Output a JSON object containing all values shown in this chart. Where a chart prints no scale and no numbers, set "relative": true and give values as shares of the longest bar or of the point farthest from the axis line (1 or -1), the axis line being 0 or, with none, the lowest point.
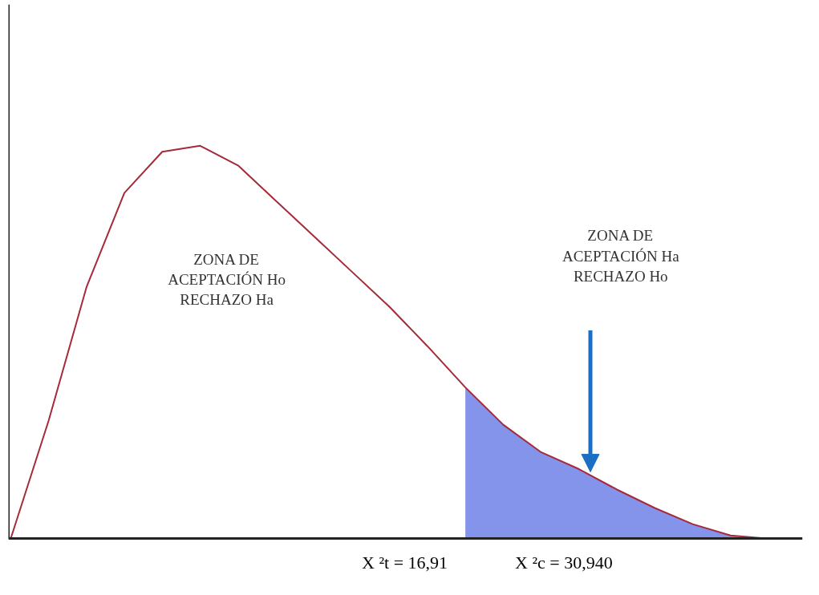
{
  "chart_data": {
    "type": "line",
    "relative": true,
    "categories": [
      null,
      null,
      null,
      null,
      null,
      null,
      null,
      null,
      null,
      null,
      null,
      null,
      null,
      null,
      null,
      null,
      null,
      null,
      null,
      null,
      null
    ],
    "series": [
      {
        "type": "area",
        "color": "#8494ea",
        "values": [
          null,
          null,
          null,
          null,
          null,
          null,
          null,
          null,
          null,
          null,
          null,
          null,
          0.385,
          0.29,
          0.22,
          0.177,
          0.125,
          0.078,
          0.037,
          0.008,
          0
        ]
      },
      {
        "color": "#a52a3a",
        "values": [
          0,
          0.3,
          0.64,
          0.88,
          0.985,
          1.0,
          0.95,
          0.86,
          0.77,
          0.68,
          0.59,
          0.49,
          0.385,
          0.29,
          0.22,
          0.177,
          0.125,
          0.078,
          0.037,
          0.008,
          0
        ]
      }
    ],
    "annotations": [
      "ZONA DE\nACEPTACIÓN Ho\nRECHAZO Ha",
      "ZONA DE\nACEPTACIÓN Ha\nRECHAZO Ho",
      "X ²t = 16,91",
      "X ²c = 30,940"
    ]
  }
}
